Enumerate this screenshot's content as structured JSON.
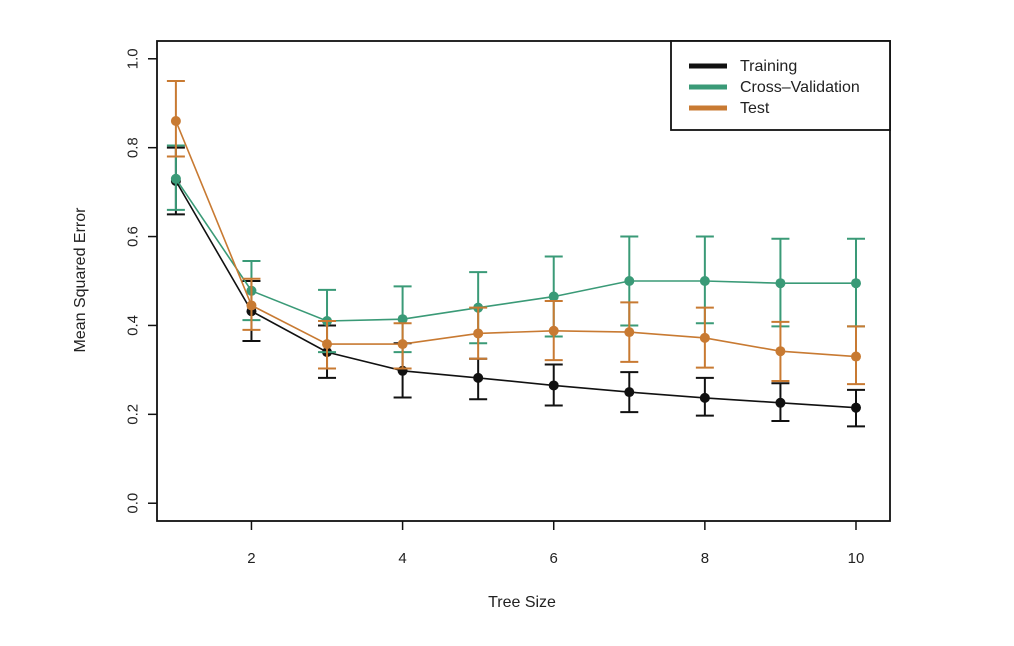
{
  "chart_data": {
    "type": "line",
    "title": "",
    "xlabel": "Tree Size",
    "ylabel": "Mean Squared Error",
    "xlim": [
      0.75,
      10.45
    ],
    "ylim": [
      -0.04,
      1.04
    ],
    "xticks": [
      2,
      4,
      6,
      8,
      10
    ],
    "xtick_labels": [
      "2",
      "4",
      "6",
      "8",
      "10"
    ],
    "yticks": [
      0.0,
      0.2,
      0.4,
      0.6,
      0.8,
      1.0
    ],
    "ytick_labels": [
      "0.0",
      "0.2",
      "0.4",
      "0.6",
      "0.8",
      "1.0"
    ],
    "grid": false,
    "legend_position": "top-right",
    "x": [
      1,
      2,
      3,
      4,
      5,
      6,
      7,
      8,
      9,
      10
    ],
    "series": [
      {
        "name": "Training",
        "color": "#111111",
        "values": [
          0.725,
          0.432,
          0.34,
          0.298,
          0.282,
          0.265,
          0.25,
          0.237,
          0.226,
          0.215
        ],
        "err_low": [
          0.65,
          0.365,
          0.282,
          0.238,
          0.234,
          0.22,
          0.205,
          0.197,
          0.185,
          0.173
        ],
        "err_high": [
          0.8,
          0.5,
          0.4,
          0.36,
          0.325,
          0.312,
          0.295,
          0.282,
          0.27,
          0.255
        ]
      },
      {
        "name": "Cross–Validation",
        "color": "#3a9a77",
        "values": [
          0.73,
          0.478,
          0.41,
          0.414,
          0.44,
          0.465,
          0.5,
          0.5,
          0.495,
          0.495
        ],
        "err_low": [
          0.66,
          0.412,
          0.34,
          0.34,
          0.36,
          0.375,
          0.4,
          0.405,
          0.398,
          0.398
        ],
        "err_high": [
          0.805,
          0.545,
          0.48,
          0.488,
          0.52,
          0.555,
          0.6,
          0.6,
          0.595,
          0.595
        ]
      },
      {
        "name": "Test",
        "color": "#c87a32",
        "values": [
          0.86,
          0.445,
          0.358,
          0.358,
          0.382,
          0.388,
          0.385,
          0.372,
          0.342,
          0.33
        ],
        "err_low": [
          0.78,
          0.39,
          0.303,
          0.303,
          0.325,
          0.322,
          0.318,
          0.305,
          0.275,
          0.268
        ],
        "err_high": [
          0.95,
          0.505,
          0.41,
          0.405,
          0.44,
          0.455,
          0.452,
          0.44,
          0.408,
          0.398
        ]
      }
    ]
  }
}
